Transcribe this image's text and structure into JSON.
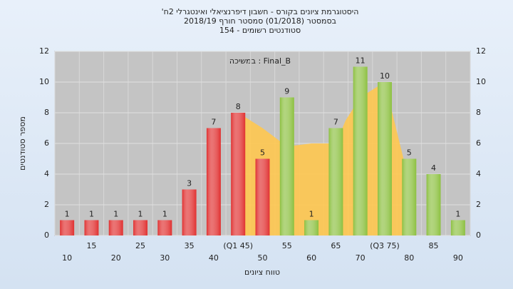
{
  "chart_data": {
    "type": "bar",
    "title_lines": [
      "'היסטוגרמת ציונים בקורס - חשבון דיפרנציאלי ואינטגרלי 2ח",
      "בסמסטר  (01/2018)  סמסטר חורף 2018/19",
      "סטודנטים רשומים - 154"
    ],
    "annotation": "במשיכה : Final_B",
    "y_label": "מספר סטודנטים",
    "x_label": "טווח ציונים",
    "categories": [
      "10",
      "15",
      "20",
      "25",
      "30",
      "35",
      "40",
      "(Q1 45)",
      "50",
      "55",
      "60",
      "65",
      "70",
      "(Q3 75)",
      "80",
      "85",
      "90"
    ],
    "values": [
      1,
      1,
      1,
      1,
      1,
      3,
      7,
      8,
      5,
      9,
      1,
      7,
      11,
      10,
      5,
      4,
      1
    ],
    "colors": [
      "#e03030",
      "#e03030",
      "#e03030",
      "#e03030",
      "#e03030",
      "#e03030",
      "#e03030",
      "#e03030",
      "#e03030",
      "#8cc040",
      "#8cc040",
      "#8cc040",
      "#8cc040",
      "#8cc040",
      "#8cc040",
      "#8cc040",
      "#8cc040"
    ],
    "area": {
      "color": "#ffc850",
      "x": [
        45,
        50,
        55,
        60,
        65,
        67,
        70,
        75,
        80
      ],
      "values": [
        8,
        7,
        5.8,
        6,
        6,
        7.5,
        9,
        10,
        3.5
      ]
    },
    "ylim": [
      0,
      12
    ],
    "yticks": [
      0,
      2,
      4,
      6,
      8,
      10,
      12
    ],
    "grid": true
  }
}
